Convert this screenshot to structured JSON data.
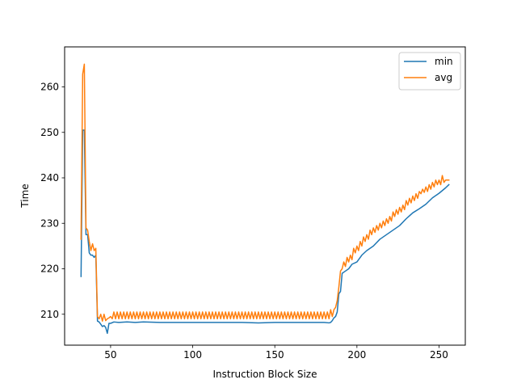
{
  "chart_data": {
    "type": "line",
    "xlabel": "Instruction Block Size",
    "ylabel": "Time",
    "xlim": [
      22,
      266
    ],
    "ylim": [
      203.2,
      268.8
    ],
    "xticks": [
      50,
      100,
      150,
      200,
      250
    ],
    "yticks": [
      210,
      220,
      230,
      240,
      250,
      260
    ],
    "grid": false,
    "legend_position": "top-right",
    "series": [
      {
        "name": "min",
        "color": "#1f77b4",
        "points": [
          [
            32,
            218.3
          ],
          [
            33,
            250.5
          ],
          [
            34,
            250.5
          ],
          [
            35,
            227.5
          ],
          [
            36,
            227.5
          ],
          [
            37,
            223.5
          ],
          [
            38,
            223
          ],
          [
            39,
            223
          ],
          [
            40,
            222.5
          ],
          [
            41,
            223
          ],
          [
            42,
            208.5
          ],
          [
            43,
            208.3
          ],
          [
            44,
            207.8
          ],
          [
            45,
            207.3
          ],
          [
            46,
            207.5
          ],
          [
            47,
            207.1
          ],
          [
            48,
            205.8
          ],
          [
            49,
            208
          ],
          [
            50,
            208
          ],
          [
            52,
            208.3
          ],
          [
            55,
            208.2
          ],
          [
            60,
            208.3
          ],
          [
            65,
            208.2
          ],
          [
            70,
            208.3
          ],
          [
            80,
            208.2
          ],
          [
            90,
            208.2
          ],
          [
            100,
            208.2
          ],
          [
            110,
            208.2
          ],
          [
            120,
            208.2
          ],
          [
            130,
            208.2
          ],
          [
            140,
            208.1
          ],
          [
            150,
            208.2
          ],
          [
            160,
            208.2
          ],
          [
            170,
            208.2
          ],
          [
            180,
            208.2
          ],
          [
            183,
            208.1
          ],
          [
            184,
            208.2
          ],
          [
            185,
            208.6
          ],
          [
            186,
            209.2
          ],
          [
            187,
            209.5
          ],
          [
            188,
            210.5
          ],
          [
            189,
            214.5
          ],
          [
            190,
            215
          ],
          [
            191,
            219
          ],
          [
            193,
            219.5
          ],
          [
            195,
            220
          ],
          [
            197,
            221
          ],
          [
            200,
            221.5
          ],
          [
            203,
            223
          ],
          [
            206,
            224
          ],
          [
            210,
            225
          ],
          [
            214,
            226.5
          ],
          [
            218,
            227.5
          ],
          [
            222,
            228.5
          ],
          [
            226,
            229.5
          ],
          [
            230,
            231
          ],
          [
            234,
            232.3
          ],
          [
            238,
            233.2
          ],
          [
            242,
            234.2
          ],
          [
            246,
            235.6
          ],
          [
            250,
            236.6
          ],
          [
            254,
            237.8
          ],
          [
            256,
            238.5
          ]
        ]
      },
      {
        "name": "avg",
        "color": "#ff7f0e",
        "points": [
          [
            32,
            226.5
          ],
          [
            33,
            262.8
          ],
          [
            34,
            265
          ],
          [
            35,
            229
          ],
          [
            36,
            228.5
          ],
          [
            37,
            226
          ],
          [
            38,
            224
          ],
          [
            39,
            225.5
          ],
          [
            40,
            224
          ],
          [
            41,
            224.5
          ],
          [
            42,
            209.5
          ],
          [
            43,
            209
          ],
          [
            44,
            210
          ],
          [
            45,
            208.5
          ],
          [
            46,
            210
          ],
          [
            47,
            208.6
          ],
          [
            48,
            209
          ],
          [
            49,
            209.2
          ],
          [
            50,
            209.5
          ],
          [
            51,
            209
          ],
          [
            52,
            210.5
          ],
          [
            53,
            209
          ],
          [
            54,
            210.5
          ],
          [
            55,
            209
          ],
          [
            56,
            210.5
          ],
          [
            57,
            209
          ],
          [
            58,
            210.5
          ],
          [
            59,
            209
          ],
          [
            60,
            210.5
          ],
          [
            61,
            209
          ],
          [
            62,
            210.5
          ],
          [
            63,
            209
          ],
          [
            64,
            210.5
          ],
          [
            65,
            209
          ],
          [
            66,
            210.5
          ],
          [
            67,
            209
          ],
          [
            68,
            210.5
          ],
          [
            69,
            209
          ],
          [
            70,
            210.5
          ],
          [
            71,
            209
          ],
          [
            72,
            210.5
          ],
          [
            73,
            209
          ],
          [
            74,
            210.5
          ],
          [
            75,
            209
          ],
          [
            76,
            210.5
          ],
          [
            77,
            209
          ],
          [
            78,
            210.5
          ],
          [
            79,
            209
          ],
          [
            80,
            210.5
          ],
          [
            81,
            209
          ],
          [
            82,
            210.5
          ],
          [
            83,
            209
          ],
          [
            84,
            210.5
          ],
          [
            85,
            209
          ],
          [
            86,
            210.5
          ],
          [
            87,
            209
          ],
          [
            88,
            210.5
          ],
          [
            89,
            209
          ],
          [
            90,
            210.5
          ],
          [
            91,
            209
          ],
          [
            92,
            210.5
          ],
          [
            93,
            209
          ],
          [
            94,
            210.5
          ],
          [
            95,
            209
          ],
          [
            96,
            210.5
          ],
          [
            97,
            209
          ],
          [
            98,
            210.5
          ],
          [
            99,
            209
          ],
          [
            100,
            210.5
          ],
          [
            101,
            209
          ],
          [
            102,
            210.5
          ],
          [
            103,
            209
          ],
          [
            104,
            210.5
          ],
          [
            105,
            209
          ],
          [
            106,
            210.5
          ],
          [
            107,
            209
          ],
          [
            108,
            210.5
          ],
          [
            109,
            209
          ],
          [
            110,
            210.5
          ],
          [
            111,
            209
          ],
          [
            112,
            210.5
          ],
          [
            113,
            209
          ],
          [
            114,
            210.5
          ],
          [
            115,
            209
          ],
          [
            116,
            210.5
          ],
          [
            117,
            209
          ],
          [
            118,
            210.5
          ],
          [
            119,
            209
          ],
          [
            120,
            210.5
          ],
          [
            121,
            209
          ],
          [
            122,
            210.5
          ],
          [
            123,
            209
          ],
          [
            124,
            210.5
          ],
          [
            125,
            209
          ],
          [
            126,
            210.5
          ],
          [
            127,
            209
          ],
          [
            128,
            210.5
          ],
          [
            129,
            209
          ],
          [
            130,
            210.5
          ],
          [
            131,
            209
          ],
          [
            132,
            210.5
          ],
          [
            133,
            209
          ],
          [
            134,
            210.5
          ],
          [
            135,
            209
          ],
          [
            136,
            210.5
          ],
          [
            137,
            209
          ],
          [
            138,
            210.5
          ],
          [
            139,
            209
          ],
          [
            140,
            210.5
          ],
          [
            141,
            209
          ],
          [
            142,
            210.5
          ],
          [
            143,
            209
          ],
          [
            144,
            210.5
          ],
          [
            145,
            209
          ],
          [
            146,
            210.5
          ],
          [
            147,
            209
          ],
          [
            148,
            210.5
          ],
          [
            149,
            209
          ],
          [
            150,
            210.5
          ],
          [
            151,
            209
          ],
          [
            152,
            210.5
          ],
          [
            153,
            209
          ],
          [
            154,
            210.5
          ],
          [
            155,
            209
          ],
          [
            156,
            210.5
          ],
          [
            157,
            209
          ],
          [
            158,
            210.5
          ],
          [
            159,
            209
          ],
          [
            160,
            210.5
          ],
          [
            161,
            209
          ],
          [
            162,
            210.5
          ],
          [
            163,
            209
          ],
          [
            164,
            210.5
          ],
          [
            165,
            209
          ],
          [
            166,
            210.5
          ],
          [
            167,
            209
          ],
          [
            168,
            210.5
          ],
          [
            169,
            209
          ],
          [
            170,
            210.5
          ],
          [
            171,
            209
          ],
          [
            172,
            210.5
          ],
          [
            173,
            209
          ],
          [
            174,
            210.5
          ],
          [
            175,
            209
          ],
          [
            176,
            210.5
          ],
          [
            177,
            209
          ],
          [
            178,
            210.5
          ],
          [
            179,
            209
          ],
          [
            180,
            210.5
          ],
          [
            181,
            209
          ],
          [
            182,
            210.5
          ],
          [
            183,
            209
          ],
          [
            184,
            211
          ],
          [
            185,
            209.5
          ],
          [
            186,
            211
          ],
          [
            187,
            211.5
          ],
          [
            188,
            213
          ],
          [
            189,
            216
          ],
          [
            190,
            219.5
          ],
          [
            191,
            220
          ],
          [
            192,
            221.5
          ],
          [
            193,
            220.5
          ],
          [
            194,
            222.5
          ],
          [
            195,
            221.5
          ],
          [
            196,
            223
          ],
          [
            197,
            222
          ],
          [
            198,
            224.5
          ],
          [
            199,
            223.5
          ],
          [
            200,
            225
          ],
          [
            201,
            224
          ],
          [
            202,
            226
          ],
          [
            203,
            225
          ],
          [
            204,
            227
          ],
          [
            205,
            226
          ],
          [
            206,
            227.5
          ],
          [
            207,
            226.5
          ],
          [
            208,
            228.5
          ],
          [
            209,
            227.5
          ],
          [
            210,
            229
          ],
          [
            211,
            228
          ],
          [
            212,
            229.5
          ],
          [
            213,
            228.5
          ],
          [
            214,
            230
          ],
          [
            215,
            229
          ],
          [
            216,
            230.5
          ],
          [
            217,
            229.5
          ],
          [
            218,
            231
          ],
          [
            219,
            230
          ],
          [
            220,
            231.5
          ],
          [
            221,
            230.5
          ],
          [
            222,
            232.5
          ],
          [
            223,
            231.5
          ],
          [
            224,
            233
          ],
          [
            225,
            232
          ],
          [
            226,
            233.5
          ],
          [
            227,
            232.5
          ],
          [
            228,
            234
          ],
          [
            229,
            233
          ],
          [
            230,
            235
          ],
          [
            231,
            234
          ],
          [
            232,
            235.5
          ],
          [
            233,
            234.5
          ],
          [
            234,
            236
          ],
          [
            235,
            235
          ],
          [
            236,
            236.5
          ],
          [
            237,
            235.5
          ],
          [
            238,
            237
          ],
          [
            239,
            236.5
          ],
          [
            240,
            237.5
          ],
          [
            241,
            236.8
          ],
          [
            242,
            238
          ],
          [
            243,
            237
          ],
          [
            244,
            238.5
          ],
          [
            245,
            237.5
          ],
          [
            246,
            239
          ],
          [
            247,
            238
          ],
          [
            248,
            239.5
          ],
          [
            249,
            238.5
          ],
          [
            250,
            239.5
          ],
          [
            251,
            238.5
          ],
          [
            252,
            240.5
          ],
          [
            253,
            239
          ],
          [
            254,
            239.5
          ],
          [
            255,
            239.5
          ],
          [
            256,
            239.5
          ]
        ]
      }
    ]
  }
}
